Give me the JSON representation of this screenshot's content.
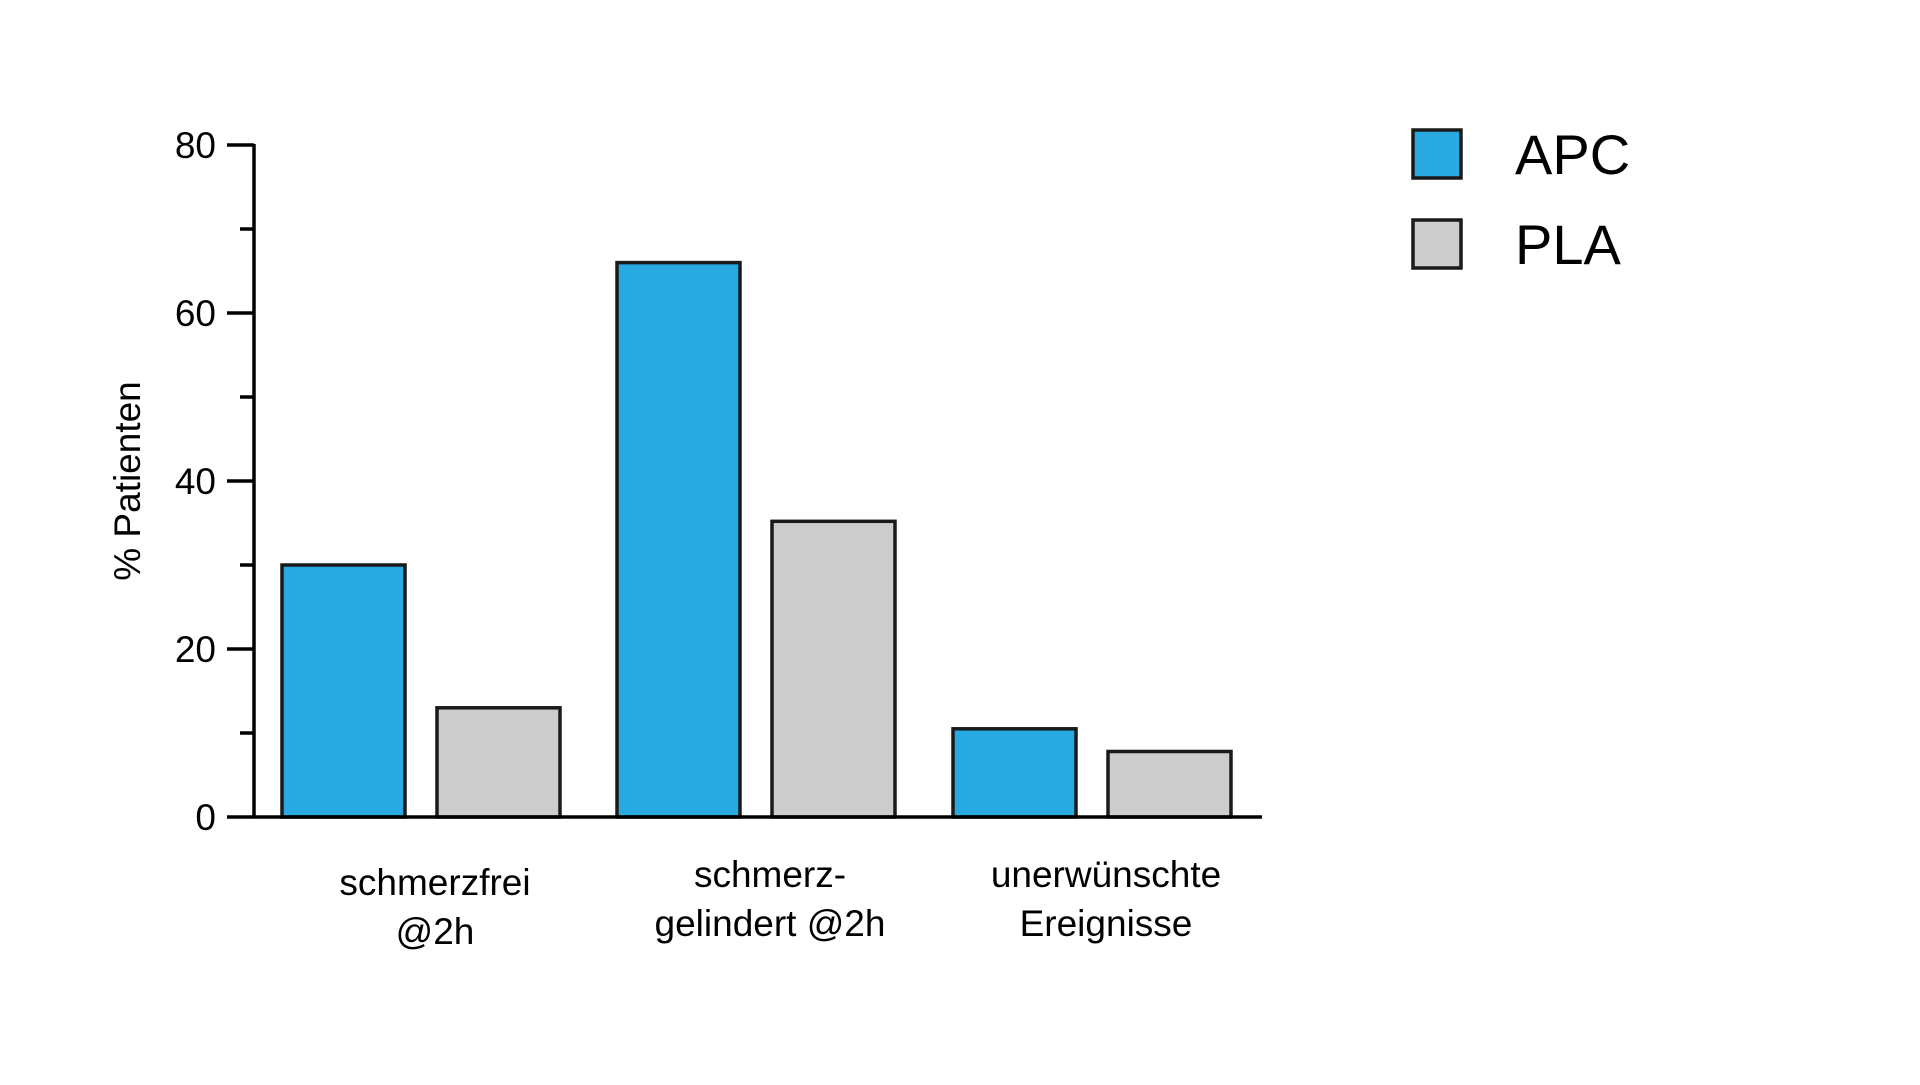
{
  "chart_data": {
    "type": "bar",
    "title": "",
    "xlabel": "",
    "ylabel": "% Patienten",
    "ylim": [
      0,
      80
    ],
    "yticks": [
      "0",
      "20",
      "40",
      "60",
      "80"
    ],
    "y_minor_ticks": [
      10,
      30,
      50,
      70
    ],
    "categories": [
      [
        "schmerzfrei",
        "@2h"
      ],
      [
        "schmerz-",
        "gelindert @2h"
      ],
      [
        "unerwünschte",
        "Ereignisse"
      ]
    ],
    "series": [
      {
        "name": "APC",
        "color": "#29a9e1",
        "values": [
          30,
          66,
          10.5
        ]
      },
      {
        "name": "PLA",
        "color": "#cccccc",
        "values": [
          13,
          35.2,
          7.8
        ]
      }
    ],
    "grid": false,
    "legend": "top-right"
  }
}
